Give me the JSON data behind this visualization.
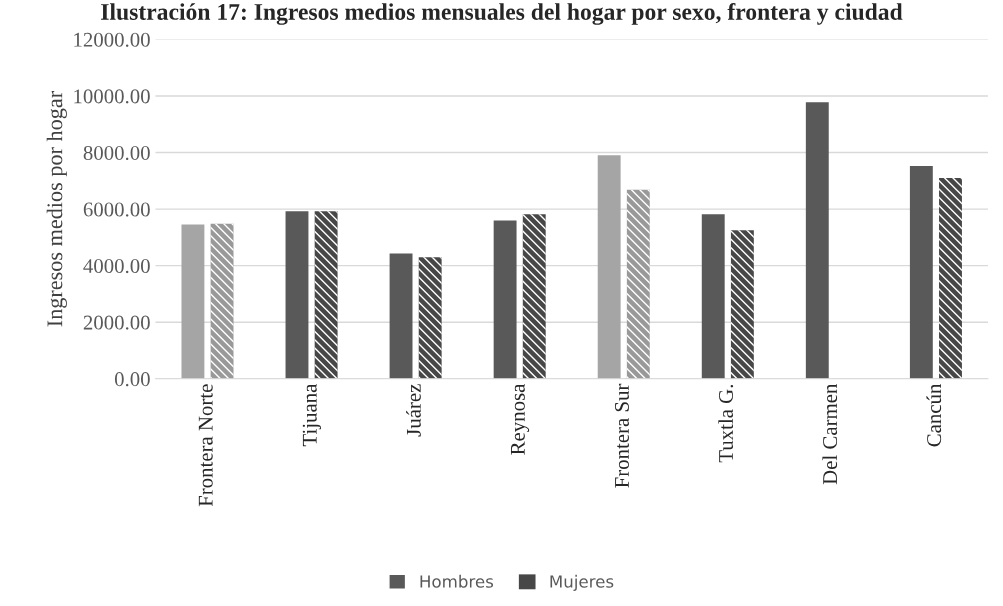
{
  "chart_data": {
    "type": "bar",
    "title": "Ilustración 17: Ingresos medios mensuales del hogar por sexo, frontera y ciudad",
    "ylabel": "Ingresos medios por hogar",
    "categories": [
      "Frontera Norte",
      "Tijuana",
      "Juárez",
      "Reynosa",
      "Frontera Sur",
      "Tuxtla G.",
      "Del Carmen",
      "Cancún"
    ],
    "series": [
      {
        "name": "Hombres",
        "color": "#595959",
        "colors": [
          "#a5a5a5",
          "#595959",
          "#595959",
          "#595959",
          "#a5a5a5",
          "#595959",
          "#595959",
          "#595959"
        ],
        "values": [
          5450,
          5920,
          4430,
          5600,
          7900,
          5820,
          9780,
          7520
        ]
      },
      {
        "name": "Mujeres",
        "color": "#474747",
        "colors": [
          "#999999",
          "#474747",
          "#474747",
          "#474747",
          "#999999",
          "#474747",
          "#474747",
          "#474747"
        ],
        "values": [
          5480,
          5920,
          4300,
          5820,
          6680,
          5250,
          null,
          7100
        ]
      }
    ],
    "ylim": [
      0,
      12000
    ],
    "yticks": [
      {
        "value": 0,
        "label": "0.00"
      },
      {
        "value": 2000,
        "label": "2000.00"
      },
      {
        "value": 4000,
        "label": "4000.00"
      },
      {
        "value": 6000,
        "label": "6000.00"
      },
      {
        "value": 8000,
        "label": "8000.00"
      },
      {
        "value": 10000,
        "label": "10000.00"
      },
      {
        "value": 12000,
        "label": "12000.00"
      }
    ],
    "grid": "y",
    "legend": "bottom"
  }
}
